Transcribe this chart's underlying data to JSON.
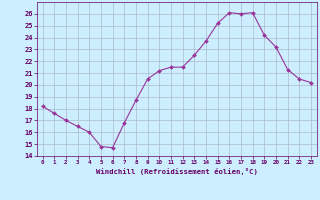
{
  "x": [
    0,
    1,
    2,
    3,
    4,
    5,
    6,
    7,
    8,
    9,
    10,
    11,
    12,
    13,
    14,
    15,
    16,
    17,
    18,
    19,
    20,
    21,
    22,
    23
  ],
  "y": [
    18.2,
    17.6,
    17.0,
    16.5,
    16.0,
    14.8,
    14.7,
    16.8,
    18.7,
    20.5,
    21.2,
    21.5,
    21.5,
    22.5,
    23.7,
    25.2,
    26.1,
    26.0,
    26.1,
    24.2,
    23.2,
    21.3,
    20.5,
    20.2
  ],
  "line_color": "#993399",
  "marker": "D",
  "marker_size": 2.0,
  "bg_color": "#cceeff",
  "grid_color": "#aabbcc",
  "xlabel": "Windchill (Refroidissement éolien,°C)",
  "xlabel_color": "#660066",
  "tick_color": "#660066",
  "ylim": [
    14,
    27
  ],
  "yticks": [
    14,
    15,
    16,
    17,
    18,
    19,
    20,
    21,
    22,
    23,
    24,
    25,
    26
  ],
  "xtick_labels": [
    "0",
    "1",
    "2",
    "3",
    "4",
    "5",
    "6",
    "7",
    "8",
    "9",
    "10",
    "11",
    "12",
    "13",
    "14",
    "15",
    "16",
    "17",
    "18",
    "19",
    "20",
    "21",
    "22",
    "23"
  ]
}
